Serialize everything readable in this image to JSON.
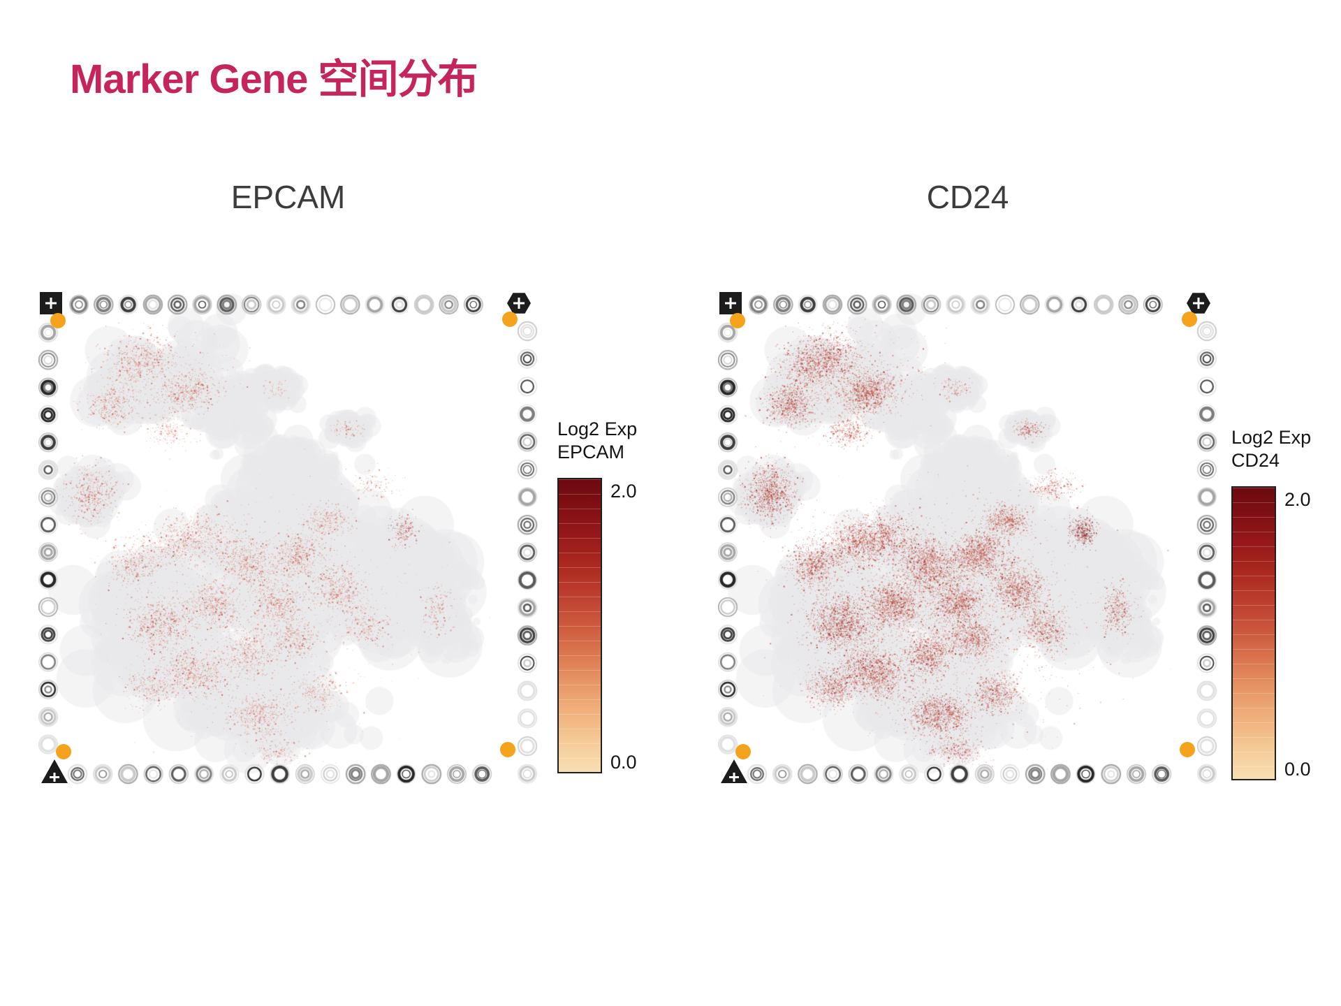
{
  "page": {
    "title": "Marker Gene 空间分布",
    "title_color": "#C5255C",
    "background": "#FFFFFF"
  },
  "panels": [
    {
      "id": "EPCAM",
      "title": "EPCAM",
      "legend": {
        "line1": "Log2 Exp",
        "line2": "EPCAM",
        "max_label": "2.0",
        "min_label": "0.0"
      },
      "density_scale": 0.8,
      "intensity_bias": 0.4,
      "seed": 101
    },
    {
      "id": "CD24",
      "title": "CD24",
      "legend": {
        "line1": "Log2 Exp",
        "line2": "CD24",
        "max_label": "2.0",
        "min_label": "0.0"
      },
      "density_scale": 1.75,
      "intensity_bias": 0.62,
      "seed": 101
    }
  ],
  "chart_data": {
    "type": "spatial_feature_plot",
    "description": "Visium-style spatial transcriptomics: red dot density and darkness encode Log2 expression over a gray tissue section inside a fiducial frame",
    "colorbar": {
      "min": 0.0,
      "max": 2.0,
      "title_prefix": "Log2 Exp"
    },
    "colormap_stops_top_to_bottom": [
      "#6B0A10",
      "#821014",
      "#98191A",
      "#AC2A20",
      "#BE4030",
      "#CC5A3E",
      "#DB7850",
      "#E89868",
      "#F0B27E",
      "#F5CB97",
      "#F8DFB4"
    ],
    "dot_palette_light_to_dark": [
      "#EFB49B",
      "#DE8268",
      "#C8564A",
      "#A93229",
      "#7F1715"
    ],
    "tissue_color": "#ECECEE",
    "blob_fields": [
      "fx",
      "fy",
      "rx",
      "ry",
      "rot_deg"
    ],
    "tissue_blobs": [
      [
        0.24,
        0.175,
        0.155,
        0.085,
        -18
      ],
      [
        0.38,
        0.235,
        0.095,
        0.055,
        18
      ],
      [
        0.475,
        0.19,
        0.05,
        0.035,
        0
      ],
      [
        0.105,
        0.405,
        0.055,
        0.065,
        0
      ],
      [
        0.5,
        0.345,
        0.1,
        0.05,
        8
      ],
      [
        0.62,
        0.275,
        0.045,
        0.027,
        0
      ],
      [
        0.46,
        0.66,
        0.3,
        0.23,
        0
      ],
      [
        0.72,
        0.58,
        0.12,
        0.12,
        0
      ],
      [
        0.235,
        0.64,
        0.12,
        0.13,
        0
      ],
      [
        0.45,
        0.85,
        0.17,
        0.08,
        0
      ],
      [
        0.5,
        0.45,
        0.16,
        0.09,
        0
      ],
      [
        0.815,
        0.67,
        0.05,
        0.07,
        0
      ]
    ],
    "cluster_fields": [
      "fx",
      "fy",
      "rx",
      "ry",
      "rot_deg",
      "n",
      "darkness_boost"
    ],
    "expression_clusters": [
      [
        0.205,
        0.135,
        0.075,
        0.05,
        -18,
        800,
        0
      ],
      [
        0.3,
        0.2,
        0.055,
        0.04,
        -15,
        600,
        0
      ],
      [
        0.145,
        0.225,
        0.045,
        0.038,
        0,
        420,
        0
      ],
      [
        0.105,
        0.405,
        0.048,
        0.055,
        0,
        650,
        0.05
      ],
      [
        0.26,
        0.28,
        0.04,
        0.028,
        0,
        200,
        -0.1
      ],
      [
        0.475,
        0.19,
        0.03,
        0.02,
        0,
        60,
        -0.15
      ],
      [
        0.62,
        0.275,
        0.032,
        0.018,
        0,
        100,
        0
      ],
      [
        0.3,
        0.5,
        0.095,
        0.05,
        -12,
        1050,
        0
      ],
      [
        0.42,
        0.55,
        0.065,
        0.05,
        30,
        820,
        0
      ],
      [
        0.52,
        0.53,
        0.055,
        0.042,
        -20,
        700,
        0
      ],
      [
        0.6,
        0.6,
        0.055,
        0.048,
        40,
        620,
        0
      ],
      [
        0.48,
        0.63,
        0.05,
        0.04,
        0,
        540,
        0
      ],
      [
        0.35,
        0.63,
        0.055,
        0.048,
        0,
        720,
        0
      ],
      [
        0.245,
        0.67,
        0.065,
        0.055,
        0,
        820,
        0.05
      ],
      [
        0.31,
        0.77,
        0.065,
        0.048,
        15,
        820,
        0
      ],
      [
        0.42,
        0.73,
        0.05,
        0.05,
        0,
        540,
        0
      ],
      [
        0.51,
        0.7,
        0.048,
        0.04,
        0,
        440,
        0
      ],
      [
        0.44,
        0.855,
        0.065,
        0.042,
        0,
        640,
        0
      ],
      [
        0.56,
        0.81,
        0.048,
        0.04,
        0,
        360,
        0
      ],
      [
        0.655,
        0.68,
        0.05,
        0.042,
        0,
        310,
        -0.05
      ],
      [
        0.73,
        0.48,
        0.026,
        0.03,
        0,
        240,
        0.3
      ],
      [
        0.67,
        0.39,
        0.045,
        0.028,
        0,
        170,
        -0.1
      ],
      [
        0.8,
        0.64,
        0.032,
        0.05,
        0,
        220,
        0
      ],
      [
        0.575,
        0.46,
        0.05,
        0.033,
        0,
        360,
        -0.05
      ],
      [
        0.19,
        0.55,
        0.05,
        0.05,
        0,
        430,
        0
      ],
      [
        0.225,
        0.8,
        0.048,
        0.04,
        0,
        360,
        0
      ],
      [
        0.48,
        0.93,
        0.055,
        0.028,
        0,
        190,
        -0.05
      ],
      [
        0.46,
        0.66,
        0.27,
        0.21,
        0,
        900,
        -0.28
      ],
      [
        0.25,
        0.19,
        0.15,
        0.08,
        -15,
        330,
        -0.22
      ]
    ]
  },
  "fiducial": {
    "ring_grays": [
      "#262626",
      "#3d3d3d",
      "#5a5a5a",
      "#7d7d7d",
      "#a5a5a5",
      "#c9c9c9",
      "#e0e0e0"
    ],
    "orange": "#F5A31C",
    "corner_color": "#1C1C1C"
  }
}
